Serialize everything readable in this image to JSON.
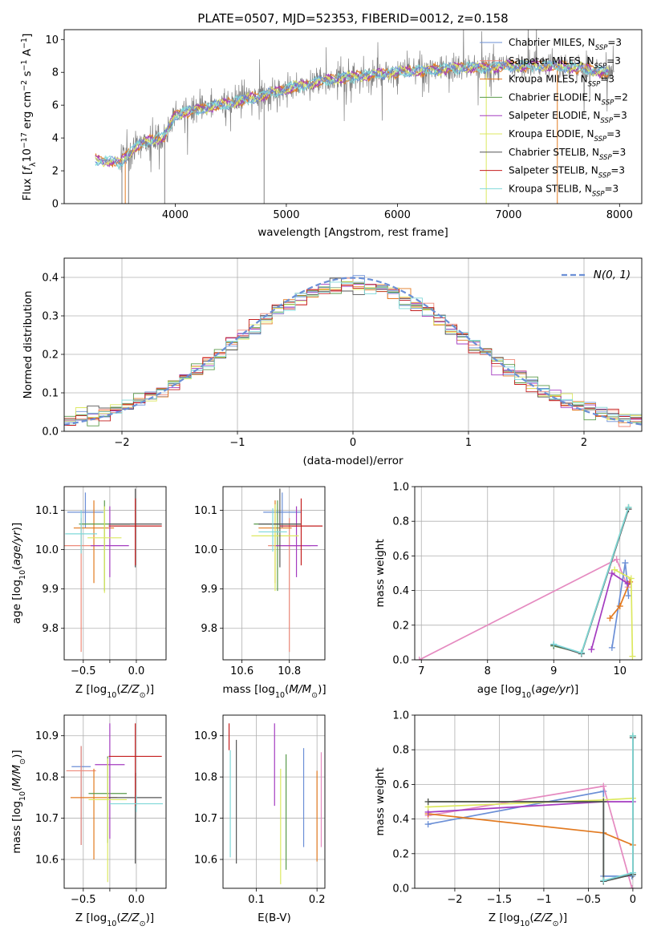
{
  "figure": {
    "title": "PLATE=0507, MJD=52353, FIBERID=0012, z=0.158"
  },
  "colors": {
    "Chabrier MILES": "#6b8fd6",
    "Salpeter MILES": "#ee8a7a",
    "Kroupa MILES": "#e27a20",
    "Chabrier ELODIE": "#5a9a4a",
    "Salpeter ELODIE": "#a43cc0",
    "Kroupa ELODIE": "#dce860",
    "Chabrier STELIB": "#555555",
    "Salpeter STELIB": "#c41e1e",
    "Kroupa STELIB": "#7fd8d8",
    "Pink": "#e58ac0",
    "data": "#808080"
  },
  "legend_spectrum": [
    {
      "label": "Chabrier MILES, N_SSP=3",
      "color": "#6b8fd6"
    },
    {
      "label": "Salpeter MILES, N_SSP=3",
      "color": "#ee8a7a"
    },
    {
      "label": "Kroupa MILES, N_SSP=3",
      "color": "#e27a20"
    },
    {
      "label": "Chabrier ELODIE, N_SSP=2",
      "color": "#5a9a4a"
    },
    {
      "label": "Salpeter ELODIE, N_SSP=3",
      "color": "#a43cc0"
    },
    {
      "label": "Kroupa ELODIE, N_SSP=3",
      "color": "#dce860"
    },
    {
      "label": "Chabrier STELIB, N_SSP=3",
      "color": "#555555"
    },
    {
      "label": "Salpeter STELIB, N_SSP=3",
      "color": "#c41e1e"
    },
    {
      "label": "Kroupa STELIB, N_SSP=3",
      "color": "#7fd8d8"
    }
  ],
  "chart_data": [
    {
      "id": "spectrum",
      "type": "line",
      "title": "PLATE=0507, MJD=52353, FIBERID=0012, z=0.158",
      "xlabel": "wavelength [Angstrom, rest frame]",
      "ylabel": "Flux [f_λ 10^-17 erg cm^-2 s^-1 A^-1]",
      "xlim": [
        3000,
        8200
      ],
      "ylim": [
        0,
        10.6
      ],
      "xticks": [
        4000,
        5000,
        6000,
        7000,
        8000
      ],
      "yticks": [
        0,
        2,
        4,
        6,
        8,
        10
      ],
      "continuum": {
        "x": [
          3280,
          3500,
          3600,
          3700,
          3800,
          3900,
          4000,
          4100,
          4200,
          4400,
          4600,
          4800,
          5000,
          5200,
          5400,
          5600,
          5800,
          6000,
          6200,
          6400,
          6600,
          6800,
          7000,
          7200,
          7400,
          7600,
          7800,
          7900
        ],
        "y": [
          2.7,
          2.5,
          3.2,
          3.7,
          3.9,
          4.1,
          5.4,
          5.6,
          5.7,
          6.0,
          6.3,
          6.6,
          7.0,
          7.3,
          7.6,
          7.7,
          7.9,
          8.0,
          8.1,
          8.2,
          8.3,
          8.3,
          8.4,
          8.4,
          8.4,
          8.3,
          8.1,
          8.0
        ]
      }
    },
    {
      "id": "residuals",
      "type": "line",
      "xlabel": "(data-model)/error",
      "ylabel": "Normed distribution",
      "xlim": [
        -2.5,
        2.5
      ],
      "ylim": [
        0,
        0.45
      ],
      "xticks": [
        -2,
        -1,
        0,
        1,
        2
      ],
      "yticks": [
        0.0,
        0.1,
        0.2,
        0.3,
        0.4
      ],
      "grid": true,
      "legend": "N(0, 1)",
      "legend_position": "top-right"
    },
    {
      "id": "age_vs_Z",
      "type": "scatter",
      "xlabel": "Z [log10(Z/Z☉)]",
      "ylabel": "age [log10(age/yr)]",
      "xlim": [
        -0.68,
        0.28
      ],
      "ylim": [
        9.72,
        10.16
      ],
      "xticks": [
        -0.5,
        -0.25,
        0.0
      ],
      "xticklabels": [
        "−0.5",
        "",
        "0.0"
      ],
      "yticks": [
        9.8,
        9.9,
        10.0,
        10.1
      ],
      "points": [
        {
          "c": "Chabrier MILES",
          "x": -0.48,
          "y": 10.095,
          "xerr": 0.17,
          "yerr": [
            0.05,
            0.04
          ]
        },
        {
          "c": "Salpeter MILES",
          "x": -0.52,
          "y": 10.01,
          "xerr": 0.18,
          "yerr": [
            0.07,
            0.27
          ]
        },
        {
          "c": "Kroupa MILES",
          "x": -0.4,
          "y": 10.055,
          "xerr": 0.19,
          "yerr": [
            0.07,
            0.14
          ]
        },
        {
          "c": "Chabrier ELODIE",
          "x": -0.3,
          "y": 10.065,
          "xerr": 0.24,
          "yerr": [
            0.06,
            0.17
          ]
        },
        {
          "c": "Salpeter ELODIE",
          "x": -0.25,
          "y": 10.01,
          "xerr": 0.18,
          "yerr": [
            0.1,
            0.08
          ]
        },
        {
          "c": "Kroupa ELODIE",
          "x": -0.3,
          "y": 10.03,
          "xerr": 0.16,
          "yerr": [
            0.08,
            0.14
          ]
        },
        {
          "c": "Chabrier STELIB",
          "x": -0.01,
          "y": 10.065,
          "xerr": 0.25,
          "yerr": [
            0.09,
            0.11
          ]
        },
        {
          "c": "Salpeter STELIB",
          "x": -0.01,
          "y": 10.06,
          "xerr": 0.25,
          "yerr": [
            0.07,
            0.1
          ]
        },
        {
          "c": "Kroupa STELIB",
          "x": -0.52,
          "y": 10.04,
          "xerr": 0.15,
          "yerr": [
            0.06,
            0.05
          ]
        }
      ]
    },
    {
      "id": "age_vs_mass",
      "type": "scatter",
      "xlabel": "mass [log10(M/M☉)]",
      "xlim": [
        10.52,
        10.95
      ],
      "ylim": [
        9.72,
        10.16
      ],
      "xticks": [
        10.6,
        10.8
      ],
      "yticks": [
        9.8,
        9.9,
        10.0,
        10.1
      ],
      "points": [
        {
          "c": "Chabrier MILES",
          "x": 10.77,
          "y": 10.095,
          "xerr": 0.08,
          "yerr": [
            0.05,
            0.04
          ]
        },
        {
          "c": "Salpeter MILES",
          "x": 10.8,
          "y": 10.01,
          "xerr": 0.09,
          "yerr": [
            0.07,
            0.27
          ]
        },
        {
          "c": "Kroupa MILES",
          "x": 10.74,
          "y": 10.055,
          "xerr": 0.07,
          "yerr": [
            0.07,
            0.14
          ]
        },
        {
          "c": "Chabrier ELODIE",
          "x": 10.75,
          "y": 10.065,
          "xerr": 0.1,
          "yerr": [
            0.06,
            0.17
          ]
        },
        {
          "c": "Salpeter ELODIE",
          "x": 10.83,
          "y": 10.01,
          "xerr": 0.09,
          "yerr": [
            0.1,
            0.08
          ]
        },
        {
          "c": "Kroupa ELODIE",
          "x": 10.74,
          "y": 10.035,
          "xerr": 0.1,
          "yerr": [
            0.08,
            0.14
          ]
        },
        {
          "c": "Chabrier STELIB",
          "x": 10.76,
          "y": 10.065,
          "xerr": 0.09,
          "yerr": [
            0.09,
            0.11
          ]
        },
        {
          "c": "Salpeter STELIB",
          "x": 10.85,
          "y": 10.06,
          "xerr": 0.09,
          "yerr": [
            0.07,
            0.1
          ]
        },
        {
          "c": "Kroupa STELIB",
          "x": 10.73,
          "y": 10.045,
          "xerr": 0.06,
          "yerr": [
            0.06,
            0.05
          ]
        }
      ]
    },
    {
      "id": "weight_vs_age",
      "type": "line",
      "xlabel": "age [log10(age/yr)]",
      "ylabel": "mass weight",
      "xlim": [
        6.9,
        10.33
      ],
      "ylim": [
        0,
        1.0
      ],
      "xticks": [
        7,
        8,
        9,
        10
      ],
      "yticks": [
        0.0,
        0.2,
        0.4,
        0.6,
        0.8,
        1.0
      ],
      "series": [
        {
          "c": "Pink",
          "x": [
            6.97,
            9.95,
            10.12
          ],
          "y": [
            0.0,
            0.58,
            0.42
          ]
        },
        {
          "c": "Chabrier MILES",
          "x": [
            9.88,
            10.08,
            10.13
          ],
          "y": [
            0.07,
            0.56,
            0.37
          ]
        },
        {
          "c": "Kroupa MILES",
          "x": [
            9.85,
            10.0,
            10.15
          ],
          "y": [
            0.24,
            0.31,
            0.45
          ]
        },
        {
          "c": "Salpeter ELODIE",
          "x": [
            9.57,
            9.88,
            10.12
          ],
          "y": [
            0.06,
            0.5,
            0.44
          ]
        },
        {
          "c": "Kroupa ELODIE",
          "x": [
            9.92,
            10.17,
            10.19
          ],
          "y": [
            0.52,
            0.47,
            0.02
          ]
        },
        {
          "c": "Chabrier ELODIE",
          "x": [
            9.0,
            9.42,
            10.13
          ],
          "y": [
            0.08,
            0.04,
            0.88
          ]
        },
        {
          "c": "Chabrier STELIB",
          "x": [
            9.0,
            9.42,
            10.13
          ],
          "y": [
            0.085,
            0.035,
            0.87
          ]
        },
        {
          "c": "Kroupa STELIB",
          "x": [
            9.0,
            9.42,
            10.13
          ],
          "y": [
            0.09,
            0.04,
            0.88
          ]
        }
      ]
    },
    {
      "id": "mass_vs_Z",
      "type": "scatter",
      "xlabel": "Z [log10(Z/Z☉)]",
      "ylabel": "mass [log10(M/M☉)]",
      "xlim": [
        -0.68,
        0.28
      ],
      "ylim": [
        10.53,
        10.95
      ],
      "xticks": [
        -0.5,
        -0.25,
        0.0
      ],
      "xticklabels": [
        "−0.5",
        "",
        "0.0"
      ],
      "yticks": [
        10.6,
        10.7,
        10.8,
        10.9
      ],
      "points": [
        {
          "c": "Chabrier MILES",
          "x": -0.52,
          "y": 10.825,
          "xerr": 0.09,
          "yerr": [
            0.05,
            0.19
          ]
        },
        {
          "c": "Salpeter MILES",
          "x": -0.52,
          "y": 10.815,
          "xerr": 0.14,
          "yerr": [
            0.06,
            0.18
          ]
        },
        {
          "c": "Kroupa MILES",
          "x": -0.4,
          "y": 10.75,
          "xerr": 0.22,
          "yerr": [
            0.07,
            0.15
          ]
        },
        {
          "c": "Chabrier ELODIE",
          "x": -0.27,
          "y": 10.76,
          "xerr": 0.18,
          "yerr": [
            0.09,
            0.12
          ]
        },
        {
          "c": "Salpeter ELODIE",
          "x": -0.25,
          "y": 10.83,
          "xerr": 0.14,
          "yerr": [
            0.1,
            0.18
          ]
        },
        {
          "c": "Kroupa ELODIE",
          "x": -0.27,
          "y": 10.745,
          "xerr": 0.18,
          "yerr": [
            0.1,
            0.2
          ]
        },
        {
          "c": "Chabrier STELIB",
          "x": -0.01,
          "y": 10.75,
          "xerr": 0.25,
          "yerr": [
            0.06,
            0.16
          ]
        },
        {
          "c": "Salpeter STELIB",
          "x": -0.01,
          "y": 10.85,
          "xerr": 0.25,
          "yerr": [
            0.08,
            0.12
          ]
        },
        {
          "c": "Kroupa STELIB",
          "x": 0.0,
          "y": 10.735,
          "xerr": 0.25,
          "yerr": [
            0.02,
            0.02
          ]
        }
      ]
    },
    {
      "id": "mass_vs_EBV",
      "type": "scatter",
      "xlabel": "E(B-V)",
      "xlim": [
        0.045,
        0.213
      ],
      "ylim": [
        10.53,
        10.95
      ],
      "xticks": [
        0.1,
        0.2
      ],
      "yticks": [
        10.6,
        10.7,
        10.8,
        10.9
      ],
      "points": [
        {
          "c": "Salpeter STELIB",
          "x": 0.055,
          "y": 10.9,
          "yerr": [
            0.03,
            0.035
          ]
        },
        {
          "c": "Kroupa STELIB",
          "x": 0.057,
          "y": 10.735,
          "yerr": [
            0.13,
            0.13
          ]
        },
        {
          "c": "Chabrier STELIB",
          "x": 0.067,
          "y": 10.74,
          "yerr": [
            0.15,
            0.15
          ]
        },
        {
          "c": "Salpeter ELODIE",
          "x": 0.13,
          "y": 10.83,
          "yerr": [
            0.1,
            0.1
          ]
        },
        {
          "c": "Kroupa ELODIE",
          "x": 0.14,
          "y": 10.68,
          "yerr": [
            0.14,
            0.14
          ]
        },
        {
          "c": "Chabrier ELODIE",
          "x": 0.149,
          "y": 10.715,
          "yerr": [
            0.14,
            0.14
          ]
        },
        {
          "c": "Chabrier MILES",
          "x": 0.178,
          "y": 10.75,
          "yerr": [
            0.12,
            0.12
          ]
        },
        {
          "c": "Kroupa MILES",
          "x": 0.2,
          "y": 10.705,
          "yerr": [
            0.11,
            0.11
          ]
        },
        {
          "c": "Pink",
          "x": 0.207,
          "y": 10.75,
          "yerr": [
            0.11,
            0.12
          ]
        }
      ]
    },
    {
      "id": "weight_vs_Z",
      "type": "line",
      "xlabel": "Z [log10(Z/Z☉)]",
      "ylabel": "mass weight",
      "xlim": [
        -2.45,
        0.1
      ],
      "ylim": [
        0,
        1.0
      ],
      "xticks": [
        -2.0,
        -1.5,
        -1.0,
        -0.5,
        0.0
      ],
      "yticks": [
        0.0,
        0.2,
        0.4,
        0.6,
        0.8,
        1.0
      ],
      "series": [
        {
          "c": "Chabrier MILES",
          "x": [
            -2.3,
            -0.33,
            -0.33,
            -0.01
          ],
          "y": [
            0.37,
            0.56,
            0.07,
            0.07
          ]
        },
        {
          "c": "Pink",
          "x": [
            -2.3,
            -0.33,
            -0.01
          ],
          "y": [
            0.42,
            0.59,
            0.0
          ]
        },
        {
          "c": "Kroupa MILES",
          "x": [
            -2.3,
            -0.33,
            0.0
          ],
          "y": [
            0.43,
            0.32,
            0.25
          ]
        },
        {
          "c": "Salpeter ELODIE",
          "x": [
            -2.3,
            -0.33,
            0.0
          ],
          "y": [
            0.44,
            0.5,
            0.5
          ]
        },
        {
          "c": "Kroupa ELODIE",
          "x": [
            -2.3,
            -0.33,
            0.0
          ],
          "y": [
            0.47,
            0.51,
            0.52
          ]
        },
        {
          "c": "Chabrier ELODIE",
          "x": [
            -2.3,
            -0.33,
            -0.33,
            0.0,
            0.0
          ],
          "y": [
            0.5,
            0.5,
            0.04,
            0.08,
            0.88
          ]
        },
        {
          "c": "Chabrier STELIB",
          "x": [
            -2.3,
            -0.33,
            -0.33,
            0.0,
            0.0
          ],
          "y": [
            0.5,
            0.5,
            0.04,
            0.08,
            0.87
          ]
        },
        {
          "c": "Kroupa STELIB",
          "x": [
            -0.33,
            0.0,
            0.0
          ],
          "y": [
            0.045,
            0.09,
            0.88
          ]
        }
      ]
    }
  ]
}
